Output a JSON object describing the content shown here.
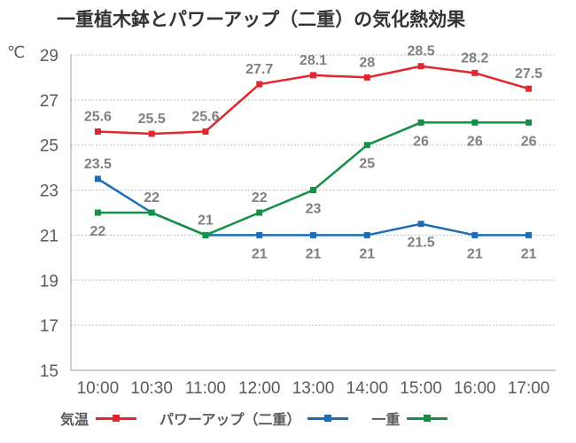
{
  "chart_data": {
    "type": "line",
    "title": "一重植木鉢とパワーアップ（二重）の気化熱効果",
    "ylabel": "℃",
    "xlabel": "",
    "categories": [
      "10:00",
      "10:30",
      "11:00",
      "12:00",
      "13:00",
      "14:00",
      "15:00",
      "16:00",
      "17:00"
    ],
    "ylim": [
      15,
      29
    ],
    "yticks": [
      15,
      17,
      19,
      21,
      23,
      25,
      27,
      29
    ],
    "grid": "horizontal-dotted",
    "legend_position": "bottom",
    "series": [
      {
        "name": "気温",
        "color": "#e3262c",
        "values": [
          25.6,
          25.5,
          25.6,
          27.7,
          28.1,
          28,
          28.5,
          28.2,
          27.5
        ],
        "labels": [
          "25.6",
          "25.5",
          "25.6",
          "27.7",
          "28.1",
          "28",
          "28.5",
          "28.2",
          "27.5"
        ]
      },
      {
        "name": "パワーアップ（二重）",
        "color": "#1d6db5",
        "values": [
          23.5,
          22,
          21,
          21,
          21,
          21,
          21.5,
          21,
          21
        ],
        "labels": [
          "23.5",
          "",
          "",
          "21",
          "21",
          "21",
          "21.5",
          "21",
          "21"
        ]
      },
      {
        "name": "一重",
        "color": "#129045",
        "values": [
          22,
          22,
          21,
          22,
          23,
          25,
          26,
          26,
          26
        ],
        "labels": [
          "22",
          "22",
          "21",
          "22",
          "23",
          "25",
          "26",
          "26",
          "26"
        ]
      }
    ]
  }
}
